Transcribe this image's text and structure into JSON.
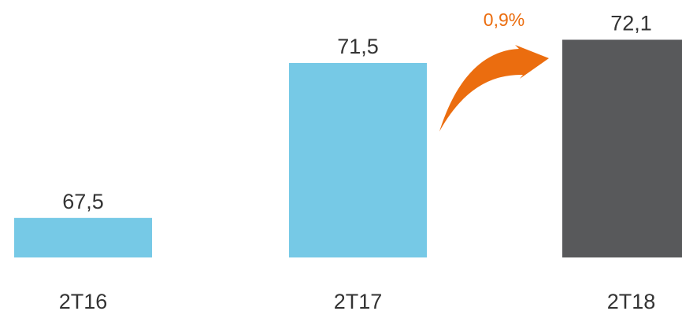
{
  "chart_data": {
    "type": "bar",
    "categories": [
      "2T16",
      "2T17",
      "2T18"
    ],
    "values": [
      67.5,
      71.5,
      72.1
    ],
    "value_labels": [
      "67,5",
      "71,5",
      "72,1"
    ],
    "bar_colors": [
      "#76c9e6",
      "#76c9e6",
      "#58595b"
    ],
    "annotation": {
      "label": "0,9%",
      "from": "2T17",
      "to": "2T18",
      "color": "#eb6d0f"
    },
    "title": "",
    "xlabel": "",
    "ylabel": "",
    "grid": false,
    "legend": "none"
  }
}
